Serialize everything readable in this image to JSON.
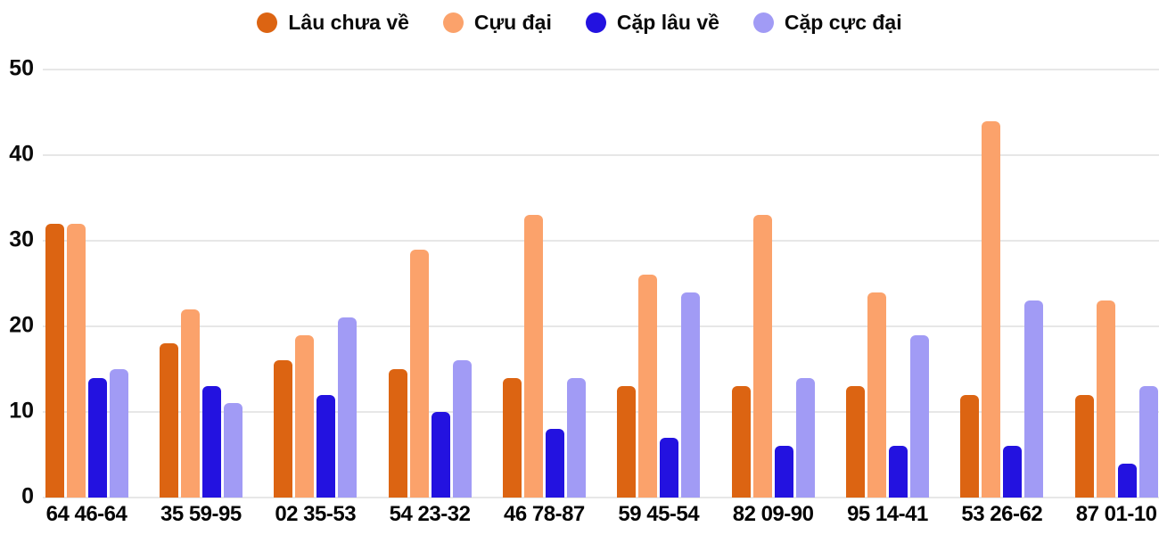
{
  "chart_data": {
    "type": "bar",
    "title": "",
    "xlabel": "",
    "ylabel": "",
    "categories": [
      "64 46-64",
      "35 59-95",
      "02 35-53",
      "54 23-32",
      "46 78-87",
      "59 45-54",
      "82 09-90",
      "95 14-41",
      "53 26-62",
      "87 01-10"
    ],
    "series": [
      {
        "name": "Lâu chưa về",
        "color": "#dc6412",
        "values": [
          32,
          18,
          16,
          15,
          14,
          13,
          13,
          13,
          12,
          12
        ]
      },
      {
        "name": "Cựu đại",
        "color": "#fba26b",
        "values": [
          32,
          22,
          19,
          29,
          33,
          26,
          33,
          24,
          44,
          23
        ]
      },
      {
        "name": "Cặp lâu về",
        "color": "#2312e0",
        "values": [
          14,
          13,
          12,
          10,
          8,
          7,
          6,
          6,
          6,
          4
        ]
      },
      {
        "name": "Cặp cực đại",
        "color": "#a19bf5",
        "values": [
          15,
          11,
          21,
          16,
          14,
          24,
          14,
          19,
          23,
          13
        ]
      }
    ],
    "ylim": [
      0,
      50
    ],
    "yticks": [
      0,
      10,
      20,
      30,
      40,
      50
    ],
    "grid": true,
    "legend_position": "top",
    "background": "#ffffff",
    "gridline_color": "#e7e7e7",
    "text_color": "#0b0b0b"
  }
}
